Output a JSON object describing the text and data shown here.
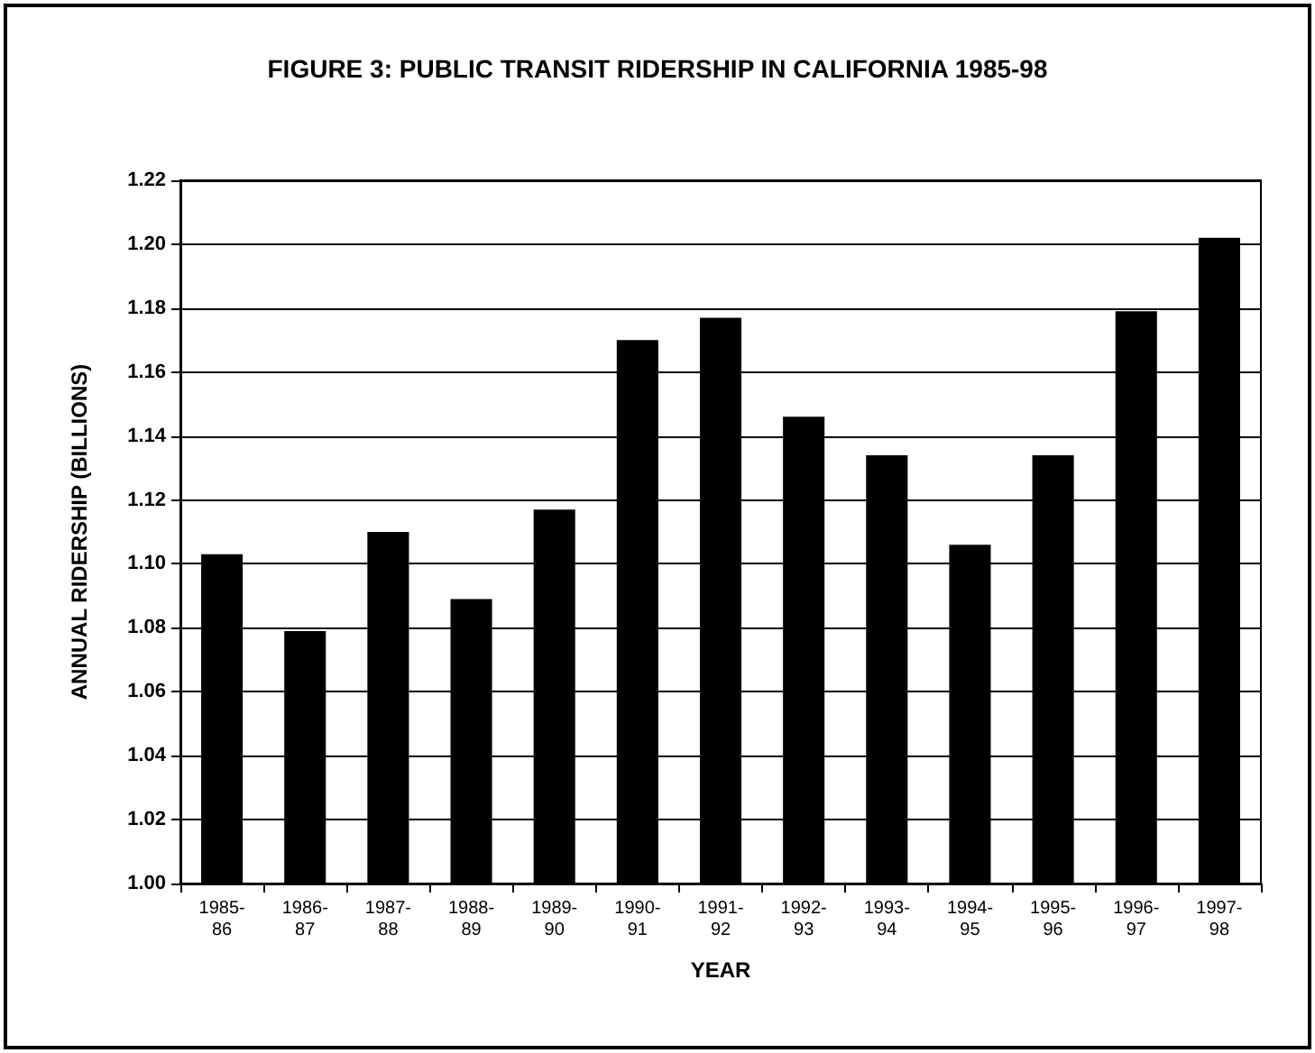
{
  "chart_data": {
    "type": "bar",
    "title": "FIGURE 3: PUBLIC TRANSIT RIDERSHIP IN CALIFORNIA 1985-98",
    "xlabel": "YEAR",
    "ylabel": "ANNUAL RIDERSHIP (BILLIONS)",
    "categories": [
      "1985-86",
      "1986-87",
      "1987-88",
      "1988-89",
      "1989-90",
      "1990-91",
      "1991-92",
      "1992-93",
      "1993-94",
      "1994-95",
      "1995-96",
      "1996-97",
      "1997-98"
    ],
    "values": [
      1.103,
      1.079,
      1.11,
      1.089,
      1.117,
      1.17,
      1.177,
      1.146,
      1.134,
      1.106,
      1.134,
      1.179,
      1.202
    ],
    "color": "#000000",
    "ylim": [
      1.0,
      1.22
    ],
    "yticks": [
      {
        "value": 1.0,
        "label": "1.00"
      },
      1.02,
      1.04,
      1.06,
      1.08,
      {
        "value": 1.1,
        "label": "1.10"
      },
      1.12,
      1.14,
      1.16,
      1.18,
      {
        "value": 1.2,
        "label": "1.20"
      },
      1.22
    ],
    "grid": "y"
  }
}
